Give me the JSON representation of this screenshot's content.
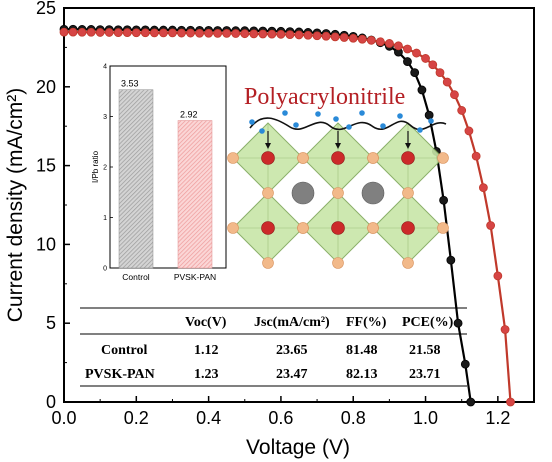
{
  "chart_data": [
    {
      "type": "line",
      "xlabel": "Voltage (V)",
      "ylabel": "Current density (mA/cm²)",
      "xlim": [
        0.0,
        1.3
      ],
      "ylim": [
        0,
        25
      ],
      "x_ticks": [
        "0.0",
        "0.2",
        "0.4",
        "0.6",
        "0.8",
        "1.0",
        "1.2"
      ],
      "y_ticks": [
        "0",
        "5",
        "10",
        "15",
        "20",
        "25"
      ],
      "series": [
        {
          "color": "#000000",
          "marker_fill": "#1a1a1a",
          "x": [
            0.0,
            0.025,
            0.05,
            0.075,
            0.1,
            0.125,
            0.15,
            0.175,
            0.2,
            0.225,
            0.25,
            0.275,
            0.3,
            0.325,
            0.35,
            0.375,
            0.4,
            0.425,
            0.45,
            0.475,
            0.5,
            0.525,
            0.55,
            0.575,
            0.6,
            0.625,
            0.65,
            0.675,
            0.7,
            0.725,
            0.75,
            0.775,
            0.8,
            0.825,
            0.85,
            0.875,
            0.9,
            0.925,
            0.95,
            0.97,
            0.99,
            1.01,
            1.03,
            1.05,
            1.07,
            1.09,
            1.11,
            1.125
          ],
          "y": [
            23.65,
            23.65,
            23.64,
            23.64,
            23.63,
            23.63,
            23.62,
            23.62,
            23.61,
            23.61,
            23.6,
            23.6,
            23.6,
            23.59,
            23.59,
            23.58,
            23.58,
            23.57,
            23.57,
            23.56,
            23.56,
            23.55,
            23.54,
            23.53,
            23.52,
            23.5,
            23.48,
            23.45,
            23.42,
            23.38,
            23.33,
            23.27,
            23.2,
            23.1,
            22.97,
            22.8,
            22.57,
            22.2,
            21.6,
            20.9,
            19.8,
            18.2,
            15.9,
            12.8,
            9.0,
            5.0,
            2.4,
            0.0
          ]
        },
        {
          "color": "#c0392b",
          "marker_fill": "#d64545",
          "x": [
            0.0,
            0.025,
            0.05,
            0.075,
            0.1,
            0.125,
            0.15,
            0.175,
            0.2,
            0.225,
            0.25,
            0.275,
            0.3,
            0.325,
            0.35,
            0.375,
            0.4,
            0.425,
            0.45,
            0.475,
            0.5,
            0.525,
            0.55,
            0.575,
            0.6,
            0.625,
            0.65,
            0.675,
            0.7,
            0.725,
            0.75,
            0.775,
            0.8,
            0.825,
            0.85,
            0.875,
            0.9,
            0.925,
            0.95,
            0.975,
            1.0,
            1.02,
            1.04,
            1.06,
            1.08,
            1.1,
            1.12,
            1.14,
            1.16,
            1.18,
            1.2,
            1.22,
            1.235
          ],
          "y": [
            23.47,
            23.47,
            23.46,
            23.46,
            23.45,
            23.45,
            23.44,
            23.44,
            23.43,
            23.43,
            23.42,
            23.42,
            23.42,
            23.41,
            23.41,
            23.4,
            23.4,
            23.39,
            23.39,
            23.38,
            23.37,
            23.36,
            23.35,
            23.34,
            23.33,
            23.31,
            23.29,
            23.27,
            23.24,
            23.21,
            23.17,
            23.13,
            23.08,
            23.02,
            22.95,
            22.86,
            22.75,
            22.6,
            22.4,
            22.14,
            21.8,
            21.4,
            20.9,
            20.3,
            19.5,
            18.5,
            17.2,
            15.6,
            13.6,
            11.2,
            8.0,
            4.6,
            0.0
          ]
        }
      ],
      "table": {
        "headers": [
          "",
          "Voc(V)",
          "Jsc(mA/cm²)",
          "FF(%)",
          "PCE(%)"
        ],
        "rows": [
          [
            "Control",
            "1.12",
            "23.65",
            "81.48",
            "21.58"
          ],
          [
            "PVSK-PAN",
            "1.23",
            "23.47",
            "82.13",
            "23.71"
          ]
        ]
      }
    },
    {
      "type": "bar",
      "categories": [
        "Control",
        "PVSK-PAN"
      ],
      "values": [
        3.53,
        2.92
      ],
      "value_labels": [
        "3.53",
        "2.92"
      ],
      "ylabel": "I/Pb ratio",
      "ylim": [
        0,
        4
      ],
      "y_ticks": [
        "0",
        "1",
        "2",
        "3",
        "4"
      ],
      "colors": [
        "#a8a8a8",
        "#f0a0a0"
      ]
    }
  ],
  "illustration": {
    "title": "Polyacrylonitrile",
    "colors": {
      "octahedron": "#c8e6a8",
      "octahedron_edge": "#7fa85a",
      "b_site": "#cc2a2a",
      "x_site": "#f2b98a",
      "a_site": "#808080",
      "polymer_beads": "#2a8ad8"
    }
  }
}
